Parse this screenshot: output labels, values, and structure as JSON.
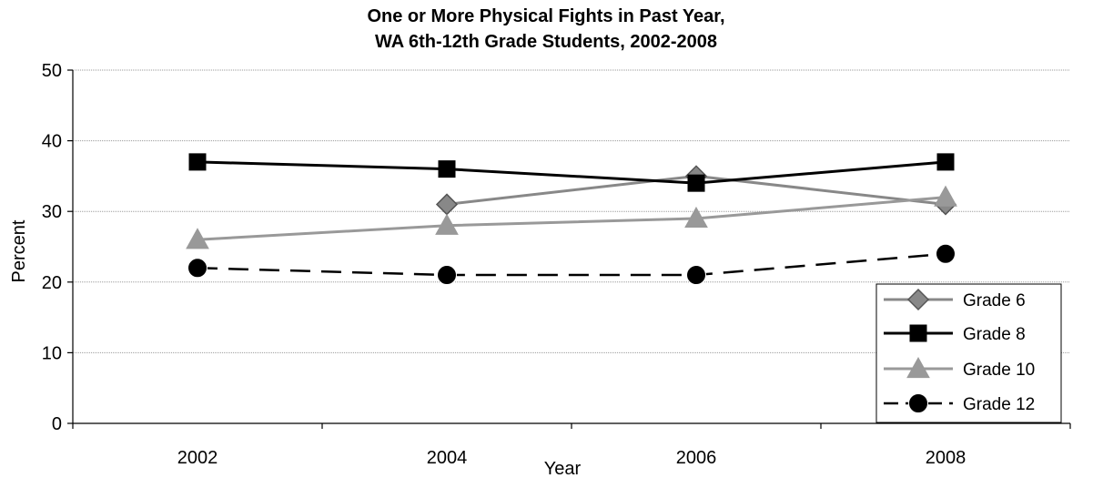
{
  "chart_data": {
    "type": "line",
    "title": [
      "One or More Physical Fights in Past Year,",
      "WA 6th-12th Grade Students, 2002-2008"
    ],
    "xlabel": "Year",
    "ylabel": "Percent",
    "categories": [
      "2002",
      "2004",
      "2006",
      "2008"
    ],
    "ylim": [
      0,
      50
    ],
    "yticks": [
      0,
      10,
      20,
      30,
      40,
      50
    ],
    "grid": true,
    "legend_position": "bottom-right",
    "series": [
      {
        "name": "Grade 6",
        "values": [
          null,
          31,
          35,
          31
        ],
        "color": "#888888",
        "marker": "diamond",
        "dash": "solid"
      },
      {
        "name": "Grade 8",
        "values": [
          37,
          36,
          34,
          37
        ],
        "color": "#000000",
        "marker": "square",
        "dash": "solid"
      },
      {
        "name": "Grade 10",
        "values": [
          26,
          28,
          29,
          32
        ],
        "color": "#999999",
        "marker": "triangle",
        "dash": "solid"
      },
      {
        "name": "Grade 12",
        "values": [
          22,
          21,
          21,
          24
        ],
        "color": "#000000",
        "marker": "circle",
        "dash": "dashed"
      }
    ]
  }
}
